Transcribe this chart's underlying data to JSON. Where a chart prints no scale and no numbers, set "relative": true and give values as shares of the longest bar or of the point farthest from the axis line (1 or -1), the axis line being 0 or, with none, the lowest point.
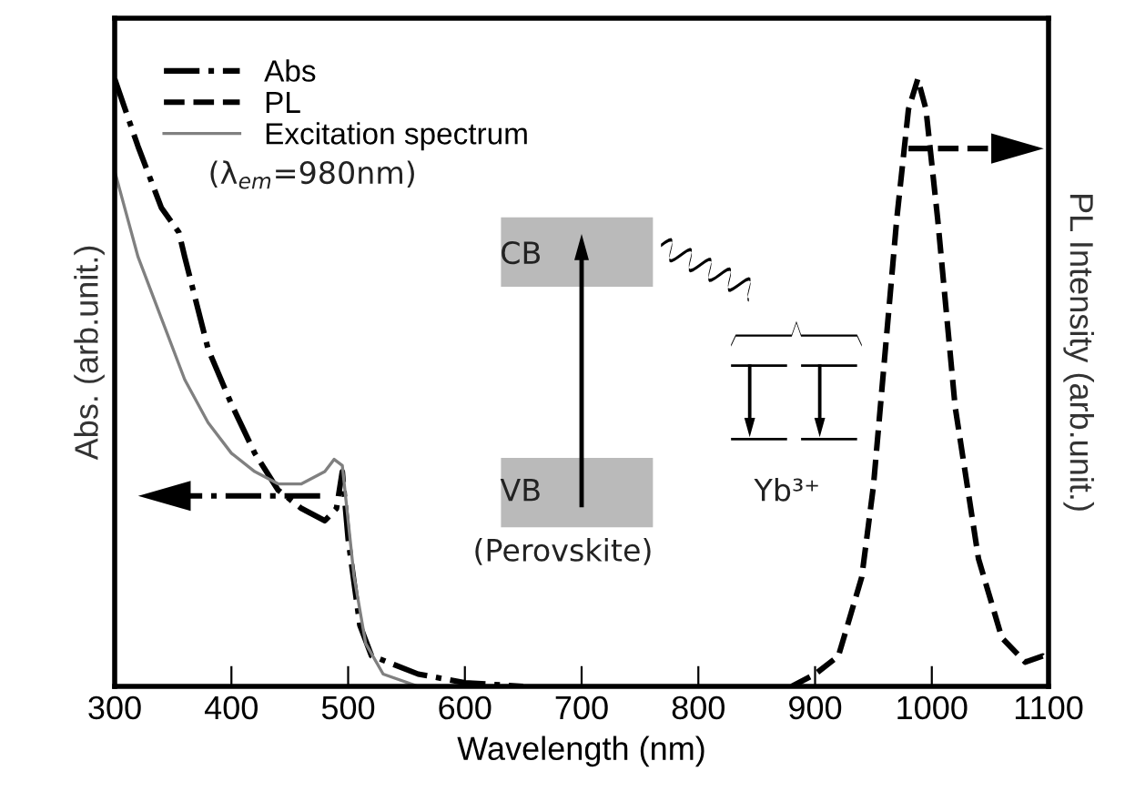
{
  "chart_data": {
    "type": "line",
    "relative": true,
    "xlabel": "Wavelength (nm)",
    "ylabel": "Abs. (arb.unit.)",
    "y2label": "PL Intensity (arb.unit.)",
    "xlim": [
      300,
      1100
    ],
    "xticks": [
      300,
      400,
      500,
      600,
      700,
      800,
      900,
      1000,
      1100
    ],
    "legend": "top left",
    "grid": false,
    "annotations": [
      "(λ$_{em}$=980nm)",
      "CB",
      "VB",
      "(Perovskite)",
      "Yb³⁺"
    ],
    "series": [
      {
        "name": "Abs",
        "color": "#000000",
        "line_style": "dashdot",
        "x": [
          300,
          320,
          340,
          355,
          360,
          380,
          400,
          420,
          440,
          460,
          480,
          490,
          495,
          500,
          510,
          520,
          560,
          600,
          650
        ],
        "values": [
          0.99,
          0.88,
          0.78,
          0.74,
          0.7,
          0.55,
          0.46,
          0.38,
          0.32,
          0.29,
          0.27,
          0.29,
          0.35,
          0.24,
          0.1,
          0.05,
          0.02,
          0.006,
          0
        ]
      },
      {
        "name": "PL",
        "color": "#000000",
        "line_style": "dashed",
        "axis": "y2",
        "x": [
          880,
          900,
          920,
          940,
          950,
          960,
          970,
          980,
          988,
          995,
          1005,
          1020,
          1040,
          1060,
          1080,
          1095,
          1100
        ],
        "values": [
          0,
          0.02,
          0.05,
          0.18,
          0.33,
          0.55,
          0.77,
          0.95,
          1.0,
          0.95,
          0.77,
          0.46,
          0.21,
          0.08,
          0.04,
          0.05,
          0.04
        ]
      },
      {
        "name": "Excitation spectrum",
        "color": "#808080",
        "line_style": "solid",
        "x": [
          300,
          320,
          340,
          360,
          380,
          400,
          420,
          440,
          460,
          480,
          488,
          495,
          505,
          515,
          530,
          560
        ],
        "values": [
          0.84,
          0.7,
          0.6,
          0.5,
          0.43,
          0.38,
          0.35,
          0.33,
          0.33,
          0.35,
          0.37,
          0.36,
          0.18,
          0.07,
          0.02,
          0
        ]
      }
    ]
  }
}
